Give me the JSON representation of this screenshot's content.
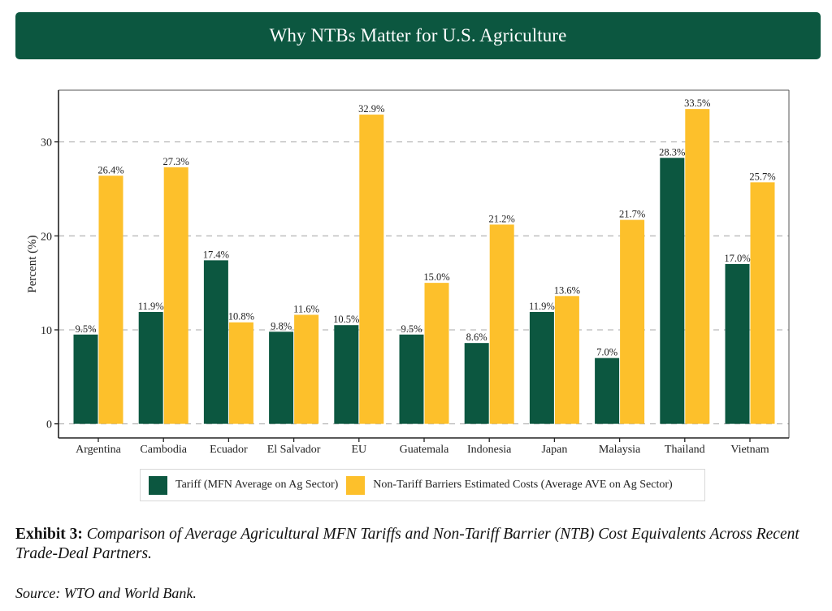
{
  "header": {
    "title": "Why NTBs Matter for U.S. Agriculture"
  },
  "colors": {
    "tariff": "#0c5740",
    "ntb": "#fdc02b",
    "grid": "#bbbbbb",
    "axis": "#222222"
  },
  "chart_data": {
    "type": "bar",
    "title": "Why NTBs Matter for U.S. Agriculture",
    "xlabel": "",
    "ylabel": "Percent (%)",
    "ylim": [
      -1.5,
      35.5
    ],
    "yticks": [
      0,
      10,
      20,
      30
    ],
    "grid": "y-dashed",
    "legend_position": "bottom",
    "categories": [
      "Argentina",
      "Cambodia",
      "Ecuador",
      "El Salvador",
      "EU",
      "Guatemala",
      "Indonesia",
      "Japan",
      "Malaysia",
      "Thailand",
      "Vietnam"
    ],
    "series": [
      {
        "name": "Tariff (MFN Average on Ag Sector)",
        "color": "#0c5740",
        "values": [
          9.5,
          11.9,
          17.4,
          9.8,
          10.5,
          9.5,
          8.6,
          11.9,
          7.0,
          28.3,
          17.0
        ],
        "labels": [
          "9.5%",
          "11.9%",
          "17.4%",
          "9.8%",
          "10.5%",
          "9.5%",
          "8.6%",
          "11.9%",
          "7.0%",
          "28.3%",
          "17.0%"
        ]
      },
      {
        "name": "Non-Tariff Barriers Estimated Costs (Average AVE on Ag Sector)",
        "color": "#fdc02b",
        "values": [
          26.4,
          27.3,
          10.8,
          11.6,
          32.9,
          15.0,
          21.2,
          13.6,
          21.7,
          33.5,
          25.7
        ],
        "labels": [
          "26.4%",
          "27.3%",
          "10.8%",
          "11.6%",
          "32.9%",
          "15.0%",
          "21.2%",
          "13.6%",
          "21.7%",
          "33.5%",
          "25.7%"
        ]
      }
    ]
  },
  "caption": {
    "lead": "Exhibit 3:",
    "text": "Comparison of Average Agricultural MFN Tariffs and Non-Tariff Barrier (NTB) Cost Equivalents Across Recent Trade-Deal Partners."
  },
  "source": "Source: WTO and World Bank."
}
